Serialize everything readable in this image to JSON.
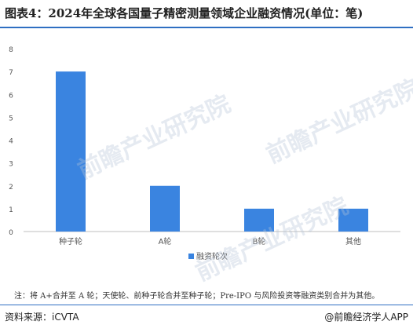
{
  "title": "图表4：2024年全球各国量子精密测量领域企业融资情况(单位：笔)",
  "note": "注：将 A+合并至 A 轮；天使轮、前种子轮合并至种子轮；Pre-IPO 与风险投资等融资类别合并为其他。",
  "source": "资料来源：iCVTA",
  "brand": "@前瞻经济学人APP",
  "watermark": "前瞻产业研究院",
  "colors": {
    "bar": "#3a84e0",
    "accent": "#2f6fc2",
    "axis": "#bfbfbf",
    "tick_text": "#555555"
  },
  "chart_data": {
    "type": "bar",
    "categories": [
      "种子轮",
      "A轮",
      "B轮",
      "其他"
    ],
    "series": [
      {
        "name": "融资轮次",
        "values": [
          7,
          2,
          1,
          1
        ]
      }
    ],
    "yticks": [
      0,
      1,
      2,
      3,
      4,
      5,
      6,
      7,
      8
    ],
    "ylim": [
      0,
      8
    ],
    "grid": false,
    "legend": "bottom-center"
  }
}
